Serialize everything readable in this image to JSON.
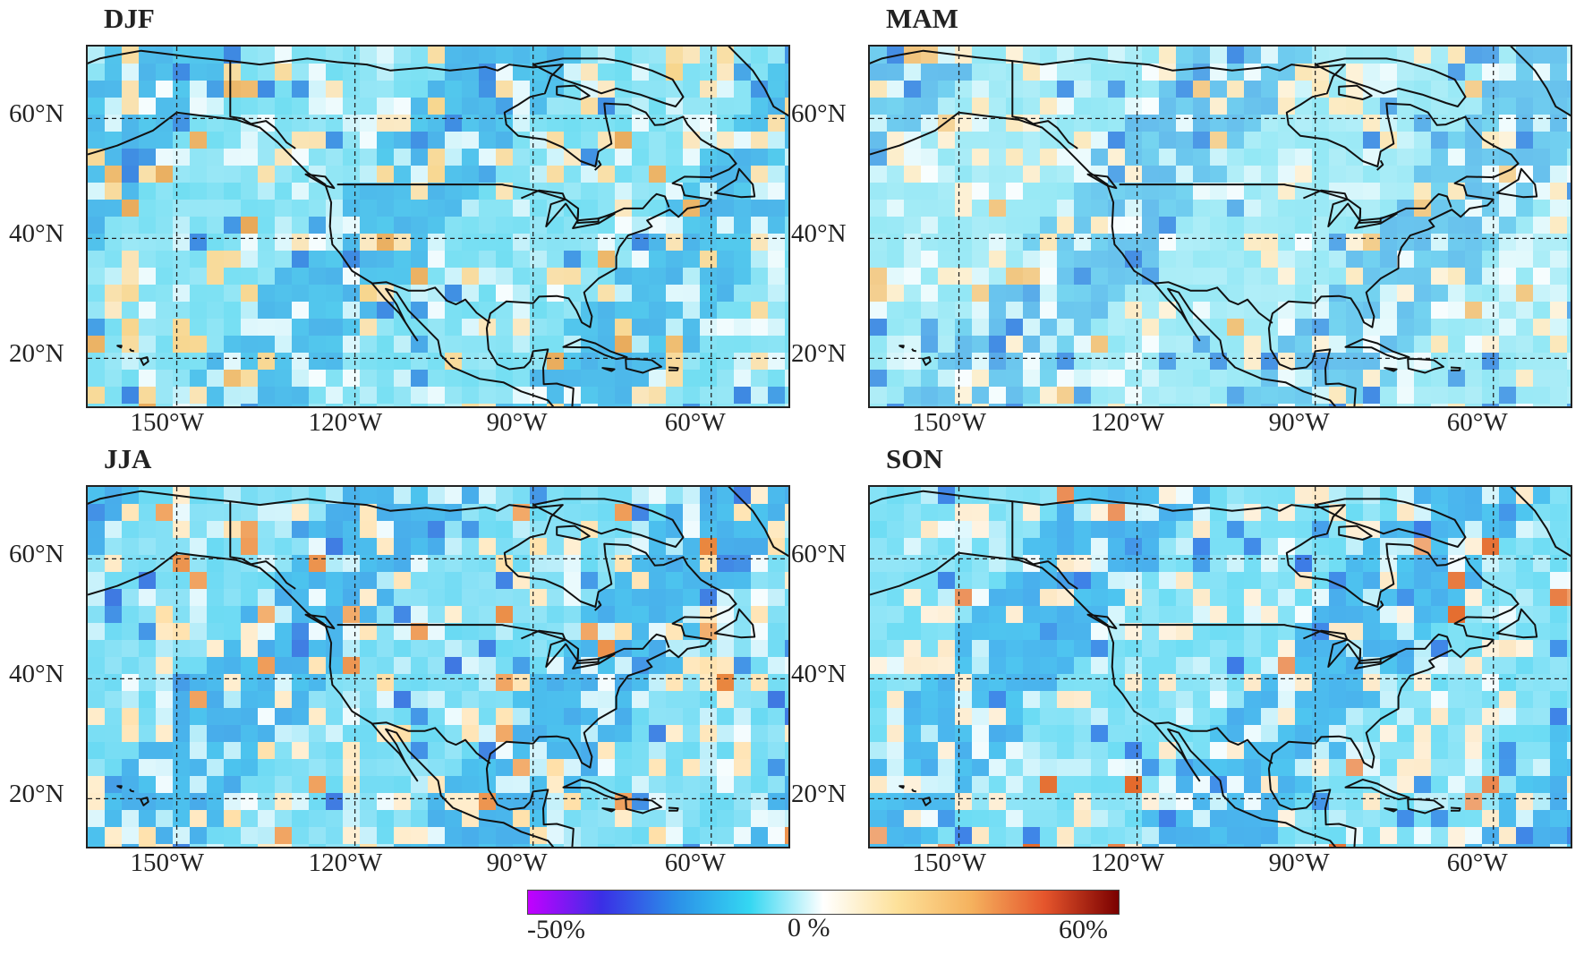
{
  "panels": [
    {
      "title": "DJF",
      "tint": "#f7d58c",
      "base": "#58d8f0",
      "hot": "#e8a95a",
      "cool": "#3a7de0"
    },
    {
      "title": "MAM",
      "tint": "#fbe7b8",
      "base": "#7fe3f3",
      "hot": "#f0c27a",
      "cool": "#3c82e2"
    },
    {
      "title": "JJA",
      "tint": "#ffe0a8",
      "base": "#4fd3f1",
      "hot": "#e8823a",
      "cool": "#3d6ee0"
    },
    {
      "title": "SON",
      "tint": "#fde8c4",
      "base": "#52d6f2",
      "hot": "#e46a2c",
      "cool": "#3a6fe4"
    }
  ],
  "lat_labels": [
    "60°N",
    "40°N",
    "20°N"
  ],
  "lon_labels": [
    "150°W",
    "120°W",
    "90°W",
    "60°W"
  ],
  "colorbar": {
    "min_label": "-50%",
    "mid_label": "0 %",
    "max_label": "60%",
    "colors": [
      "#c300ff",
      "#3a2fe6",
      "#2b8fe8",
      "#34d7f2",
      "#ffffff",
      "#fde19a",
      "#f5b25e",
      "#e5552c",
      "#7a0000"
    ]
  }
}
